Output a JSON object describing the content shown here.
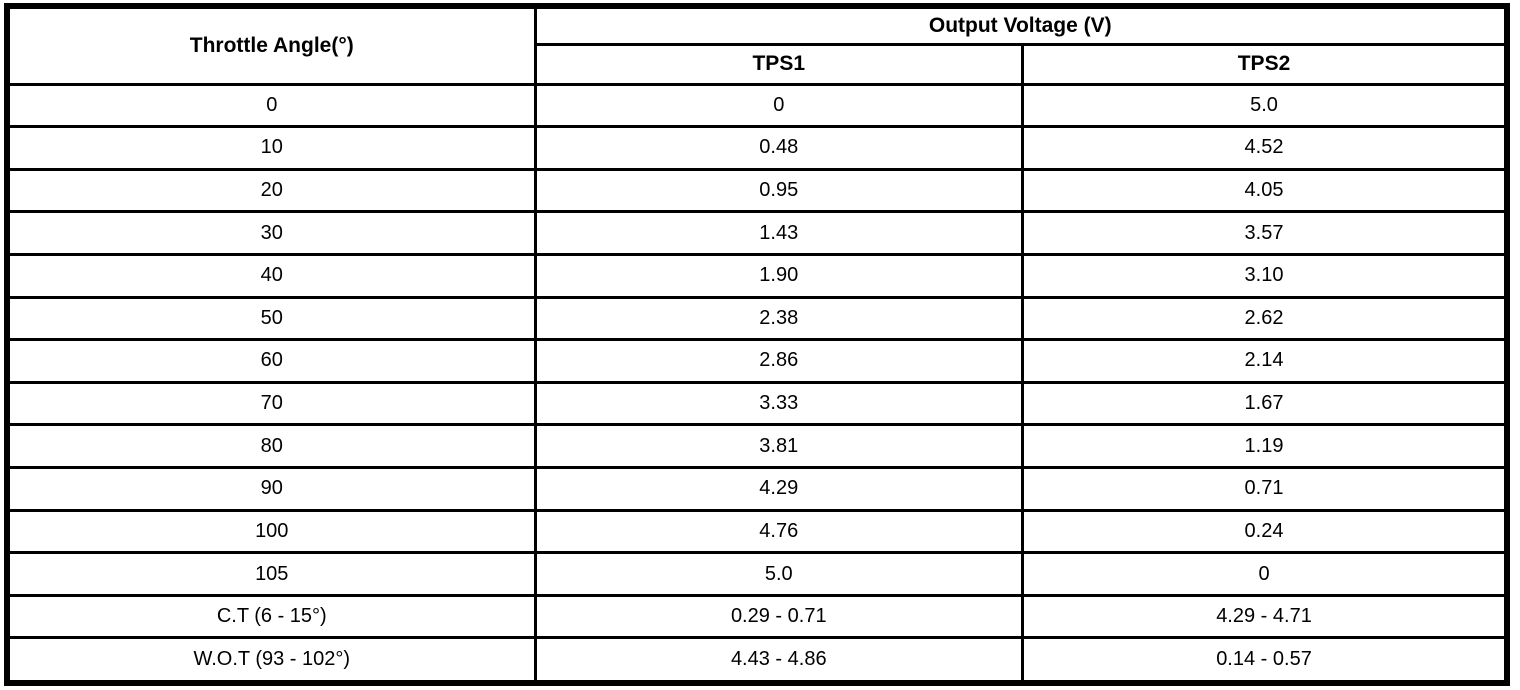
{
  "chart_data": {
    "type": "table",
    "header": {
      "angle": "Throttle Angle(°)",
      "group": "Output Voltage (V)",
      "sub": [
        "TPS1",
        "TPS2"
      ]
    },
    "rows": [
      {
        "angle": "0",
        "tps1": "0",
        "tps2": "5.0"
      },
      {
        "angle": "10",
        "tps1": "0.48",
        "tps2": "4.52"
      },
      {
        "angle": "20",
        "tps1": "0.95",
        "tps2": "4.05"
      },
      {
        "angle": "30",
        "tps1": "1.43",
        "tps2": "3.57"
      },
      {
        "angle": "40",
        "tps1": "1.90",
        "tps2": "3.10"
      },
      {
        "angle": "50",
        "tps1": "2.38",
        "tps2": "2.62"
      },
      {
        "angle": "60",
        "tps1": "2.86",
        "tps2": "2.14"
      },
      {
        "angle": "70",
        "tps1": "3.33",
        "tps2": "1.67"
      },
      {
        "angle": "80",
        "tps1": "3.81",
        "tps2": "1.19"
      },
      {
        "angle": "90",
        "tps1": "4.29",
        "tps2": "0.71"
      },
      {
        "angle": "100",
        "tps1": "4.76",
        "tps2": "0.24"
      },
      {
        "angle": "105",
        "tps1": "5.0",
        "tps2": "0"
      },
      {
        "angle": "C.T (6 - 15°)",
        "tps1": "0.29 - 0.71",
        "tps2": "4.29 - 4.71"
      },
      {
        "angle": "W.O.T (93 - 102°)",
        "tps1": "4.43 - 4.86",
        "tps2": "0.14 - 0.57"
      }
    ]
  },
  "colors": {
    "border": "#000000",
    "background": "#ffffff",
    "text": "#000000"
  }
}
